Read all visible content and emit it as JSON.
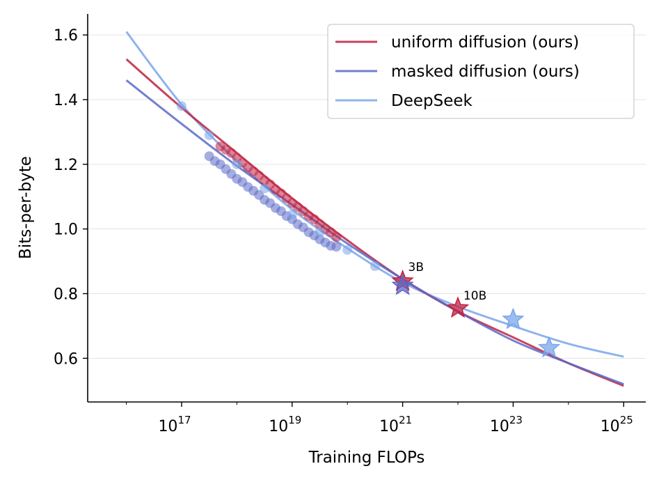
{
  "chart_data": {
    "type": "line",
    "title": "",
    "xlabel": "Training FLOPs",
    "ylabel": "Bits-per-byte",
    "xscale": "log",
    "xlim_exp": [
      15.3,
      25.4
    ],
    "ylim": [
      0.465,
      1.665
    ],
    "x_ticks": [
      {
        "base": "10",
        "exp": "17",
        "value_exp": 17
      },
      {
        "base": "10",
        "exp": "19",
        "value_exp": 19
      },
      {
        "base": "10",
        "exp": "21",
        "value_exp": 21
      },
      {
        "base": "10",
        "exp": "23",
        "value_exp": 23
      },
      {
        "base": "10",
        "exp": "25",
        "value_exp": 25
      }
    ],
    "y_ticks": [
      "0.6",
      "0.8",
      "1.0",
      "1.2",
      "1.4",
      "1.6"
    ],
    "y_tick_values": [
      0.6,
      0.8,
      1.0,
      1.2,
      1.4,
      1.6
    ],
    "grid": "horizontal",
    "legend_position": "top-right",
    "series": [
      {
        "name": "uniform diffusion (ours)",
        "color": "#c0203f",
        "fit": {
          "log10_flops": [
            16,
            17,
            18,
            19,
            20,
            21,
            22,
            23,
            24,
            25
          ],
          "bpb": [
            1.525,
            1.375,
            1.235,
            1.095,
            0.965,
            0.845,
            0.745,
            0.665,
            0.585,
            0.515
          ]
        },
        "points": {
          "log10_flops": [
            17.7,
            17.8,
            17.9,
            18.0,
            18.1,
            18.2,
            18.3,
            18.4,
            18.5,
            18.6,
            18.7,
            18.8,
            18.9,
            19.0,
            19.1,
            19.2,
            19.3,
            19.4,
            19.5,
            19.6,
            19.7,
            19.8
          ],
          "bpb": [
            1.255,
            1.245,
            1.235,
            1.22,
            1.205,
            1.19,
            1.178,
            1.165,
            1.15,
            1.138,
            1.122,
            1.11,
            1.095,
            1.08,
            1.068,
            1.055,
            1.04,
            1.03,
            1.015,
            1.0,
            0.99,
            0.975
          ]
        },
        "stars": {
          "log10_flops": [
            21.0,
            22.0
          ],
          "bpb": [
            0.838,
            0.755
          ]
        }
      },
      {
        "name": "masked diffusion (ours)",
        "color": "#5b69c8",
        "fit": {
          "log10_flops": [
            16,
            17,
            18,
            19,
            20,
            21,
            22,
            23,
            24,
            25
          ],
          "bpb": [
            1.46,
            1.325,
            1.195,
            1.075,
            0.955,
            0.845,
            0.745,
            0.655,
            0.585,
            0.52
          ]
        },
        "points": {
          "log10_flops": [
            17.5,
            17.6,
            17.7,
            17.8,
            17.9,
            18.0,
            18.1,
            18.2,
            18.3,
            18.4,
            18.5,
            18.6,
            18.7,
            18.8,
            18.9,
            19.0,
            19.1,
            19.2,
            19.3,
            19.4,
            19.5,
            19.6,
            19.7,
            19.8
          ],
          "bpb": [
            1.225,
            1.21,
            1.2,
            1.185,
            1.17,
            1.155,
            1.145,
            1.13,
            1.118,
            1.105,
            1.09,
            1.08,
            1.065,
            1.055,
            1.04,
            1.03,
            1.015,
            1.005,
            0.99,
            0.98,
            0.968,
            0.958,
            0.948,
            0.945
          ]
        },
        "stars": {
          "log10_flops": [
            21.0
          ],
          "bpb": [
            0.825
          ]
        }
      },
      {
        "name": "DeepSeek",
        "color": "#7aa6ea",
        "fit": {
          "log10_flops": [
            16,
            17,
            18,
            19,
            20,
            21,
            22,
            23,
            24,
            25
          ],
          "bpb": [
            1.61,
            1.385,
            1.21,
            1.06,
            0.94,
            0.835,
            0.76,
            0.7,
            0.645,
            0.605
          ]
        },
        "points": {
          "log10_flops": [
            17.0,
            17.5,
            18.0,
            18.5,
            19.0,
            19.5,
            20.0,
            20.5
          ],
          "bpb": [
            1.38,
            1.29,
            1.2,
            1.125,
            1.045,
            0.99,
            0.935,
            0.885
          ]
        },
        "stars": {
          "log10_flops": [
            23.0,
            23.65
          ],
          "bpb": [
            0.72,
            0.632
          ]
        }
      }
    ],
    "annotations": [
      {
        "text": "3B",
        "log10_flops": 21.1,
        "bpb": 0.87
      },
      {
        "text": "10B",
        "log10_flops": 22.1,
        "bpb": 0.782
      }
    ]
  }
}
